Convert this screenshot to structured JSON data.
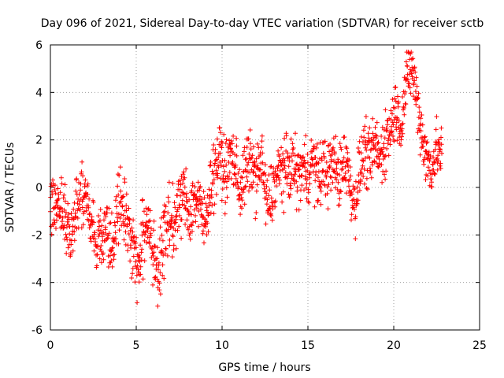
{
  "chart_data": {
    "type": "scatter",
    "title": "Day 096 of 2021, Sidereal Day-to-day VTEC variation (SDTVAR) for receiver sctb",
    "xlabel": "GPS time / hours",
    "ylabel": "SDTVAR / TECUs",
    "xlim": [
      0,
      25
    ],
    "ylim": [
      -6,
      6
    ],
    "xticks": [
      0,
      5,
      10,
      15,
      20,
      25
    ],
    "yticks": [
      -6,
      -4,
      -2,
      0,
      2,
      4,
      6
    ],
    "grid": true,
    "marker": "+",
    "color": "#ff0000",
    "x_range_of_data": [
      0,
      22.8
    ],
    "series": [
      {
        "name": "SDTVAR",
        "trend": [
          [
            0.0,
            -0.8
          ],
          [
            0.3,
            -1.0
          ],
          [
            0.6,
            -0.6
          ],
          [
            0.9,
            -1.4
          ],
          [
            1.2,
            -2.2
          ],
          [
            1.5,
            -1.0
          ],
          [
            1.8,
            0.0
          ],
          [
            2.1,
            -0.8
          ],
          [
            2.4,
            -1.4
          ],
          [
            2.7,
            -2.2
          ],
          [
            3.0,
            -2.0
          ],
          [
            3.3,
            -1.6
          ],
          [
            3.6,
            -2.4
          ],
          [
            3.9,
            -1.0
          ],
          [
            4.2,
            -0.6
          ],
          [
            4.5,
            -1.4
          ],
          [
            4.8,
            -2.6
          ],
          [
            5.1,
            -3.4
          ],
          [
            5.4,
            -2.2
          ],
          [
            5.7,
            -1.2
          ],
          [
            6.0,
            -2.8
          ],
          [
            6.3,
            -3.4
          ],
          [
            6.6,
            -2.4
          ],
          [
            6.9,
            -1.2
          ],
          [
            7.2,
            -1.6
          ],
          [
            7.5,
            -0.8
          ],
          [
            7.8,
            -0.2
          ],
          [
            8.1,
            -1.2
          ],
          [
            8.4,
            -0.4
          ],
          [
            8.7,
            -0.8
          ],
          [
            9.0,
            -1.6
          ],
          [
            9.3,
            0.0
          ],
          [
            9.6,
            0.8
          ],
          [
            9.9,
            1.4
          ],
          [
            10.2,
            0.4
          ],
          [
            10.5,
            1.4
          ],
          [
            10.8,
            0.8
          ],
          [
            11.1,
            -0.2
          ],
          [
            11.4,
            0.8
          ],
          [
            11.7,
            1.0
          ],
          [
            12.0,
            0.4
          ],
          [
            12.3,
            1.2
          ],
          [
            12.6,
            -0.8
          ],
          [
            12.9,
            -0.2
          ],
          [
            13.2,
            0.4
          ],
          [
            13.5,
            0.9
          ],
          [
            13.8,
            0.6
          ],
          [
            14.1,
            1.0
          ],
          [
            14.4,
            0.4
          ],
          [
            14.7,
            0.8
          ],
          [
            15.0,
            0.6
          ],
          [
            15.3,
            1.2
          ],
          [
            15.6,
            0.3
          ],
          [
            15.9,
            0.9
          ],
          [
            16.2,
            0.6
          ],
          [
            16.5,
            1.1
          ],
          [
            16.8,
            0.3
          ],
          [
            17.1,
            1.3
          ],
          [
            17.4,
            0.5
          ],
          [
            17.7,
            -0.8
          ],
          [
            18.0,
            0.6
          ],
          [
            18.3,
            1.6
          ],
          [
            18.6,
            1.0
          ],
          [
            18.9,
            1.8
          ],
          [
            19.2,
            1.2
          ],
          [
            19.5,
            2.0
          ],
          [
            19.8,
            2.4
          ],
          [
            20.1,
            3.4
          ],
          [
            20.4,
            2.6
          ],
          [
            20.7,
            4.2
          ],
          [
            21.0,
            5.2
          ],
          [
            21.3,
            4.0
          ],
          [
            21.6,
            2.4
          ],
          [
            21.9,
            1.2
          ],
          [
            22.2,
            0.8
          ],
          [
            22.5,
            1.6
          ],
          [
            22.8,
            1.4
          ]
        ]
      }
    ]
  }
}
